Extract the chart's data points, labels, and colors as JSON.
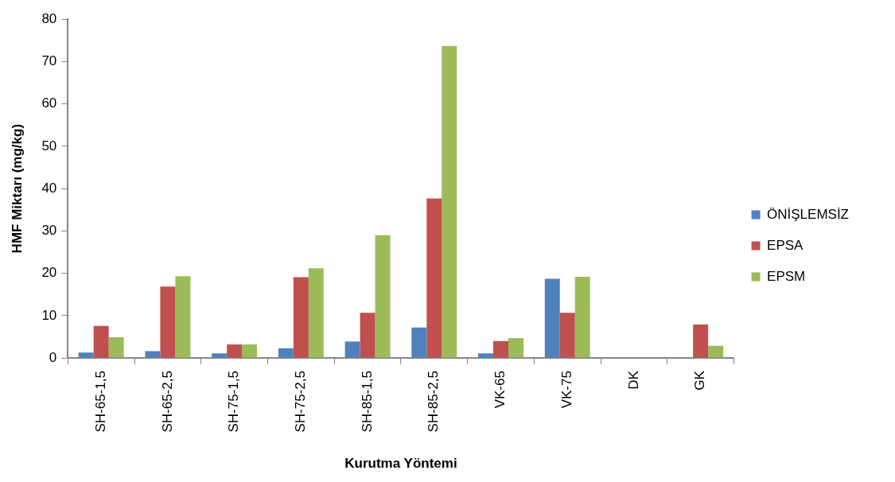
{
  "chart_data": {
    "type": "bar",
    "xlabel": "Kurutma Yöntemi",
    "ylabel": "HMF Miktarı (mg/kg)",
    "categories": [
      "SH-65-1,5",
      "SH-65-2,5",
      "SH-75-1,5",
      "SH-75-2,5",
      "SH-85-1,5",
      "SH-85-2,5",
      "VK-65",
      "VK-75",
      "DK",
      "GK"
    ],
    "series": [
      {
        "name": "ÖNİŞLEMSİZ",
        "color": "#4f81bd",
        "values": [
          1.3,
          1.6,
          1.1,
          2.3,
          3.9,
          7.2,
          1.1,
          18.7,
          0,
          0
        ]
      },
      {
        "name": "EPSA",
        "color": "#c0504d",
        "values": [
          7.6,
          16.9,
          3.2,
          19.1,
          10.7,
          37.7,
          4.0,
          10.7,
          0,
          7.9
        ]
      },
      {
        "name": "EPSM",
        "color": "#9bbb59",
        "values": [
          4.9,
          19.3,
          3.2,
          21.2,
          29.0,
          73.7,
          4.7,
          19.2,
          0,
          2.9
        ]
      }
    ],
    "ylim": [
      0,
      80
    ],
    "yticks": [
      0,
      10,
      20,
      30,
      40,
      50,
      60,
      70,
      80
    ],
    "grid": false,
    "legend": "right"
  }
}
